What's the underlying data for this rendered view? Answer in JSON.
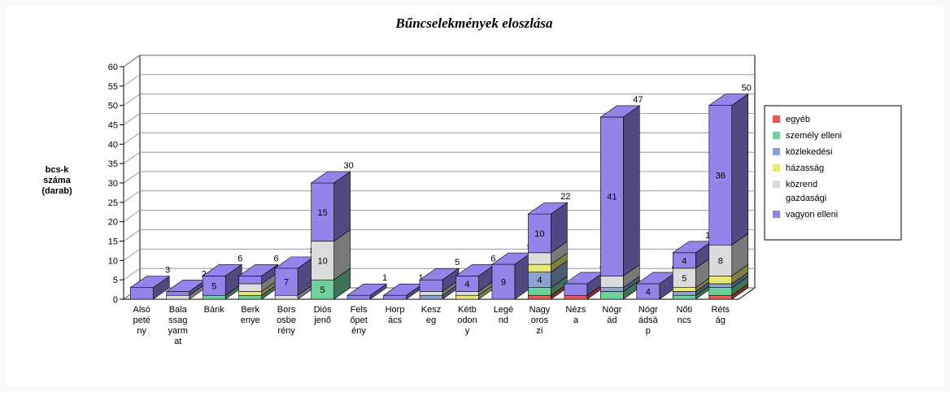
{
  "chart_data": {
    "type": "bar3d_stacked",
    "title": "Bűncselekmények eloszlása",
    "y_label": "bcs-k\nszáma\n(darab)",
    "categories": [
      "Alsó\npeté\nny",
      "Bala\nssag\nyarm\nat",
      "Bánk",
      "Berk\nenye",
      "Bors\nosbe\nrény",
      "Diós\njenő",
      "Fels\nőpet\nény",
      "Horp\nács",
      "Kesz\neg",
      "Kétb\nodon\ny",
      "Legé\nnd",
      "Nagy\noros\nzi",
      "Nézs\na",
      "Nógr\nád",
      "Nógr\nádsá\np",
      "Nőti\nncs",
      "Réts\nág"
    ],
    "series": [
      {
        "name": "egyéb",
        "color": "#e85a5a",
        "values": [
          0,
          0,
          0,
          0,
          0,
          0,
          0,
          0,
          0,
          0,
          0,
          1,
          1,
          0,
          0,
          0,
          1
        ]
      },
      {
        "name": "személy elleni",
        "color": "#70d09c",
        "values": [
          0,
          0,
          1,
          1,
          0,
          5,
          0,
          0,
          0,
          0,
          0,
          2,
          0,
          2,
          0,
          1,
          2
        ]
      },
      {
        "name": "közlekedési",
        "color": "#8ea2d2",
        "values": [
          0,
          0,
          0,
          0,
          0,
          0,
          0,
          0,
          1,
          0,
          0,
          4,
          0,
          1,
          0,
          1,
          1
        ]
      },
      {
        "name": "házasság",
        "color": "#e8e878",
        "values": [
          0,
          0,
          0,
          1,
          0,
          0,
          0,
          0,
          0,
          1,
          0,
          2,
          0,
          0,
          0,
          1,
          2
        ]
      },
      {
        "name": "közrend\ngazdasági",
        "color": "#dcdcdc",
        "values": [
          0,
          1,
          0,
          2,
          1,
          10,
          0,
          0,
          1,
          1,
          0,
          3,
          0,
          3,
          0,
          5,
          8
        ]
      },
      {
        "name": "vagyon elleni",
        "color": "#9484ea",
        "values": [
          3,
          1,
          5,
          2,
          7,
          15,
          1,
          1,
          3,
          4,
          9,
          10,
          3,
          41,
          4,
          4,
          36
        ]
      }
    ],
    "totals": [
      3,
      2,
      6,
      6,
      8,
      30,
      1,
      1,
      5,
      6,
      9,
      22,
      4,
      47,
      4,
      12,
      50
    ],
    "ylim": [
      0,
      60
    ],
    "yticks": [
      0,
      5,
      10,
      15,
      20,
      25,
      30,
      35,
      40,
      45,
      50,
      55,
      60
    ],
    "grid": true
  }
}
